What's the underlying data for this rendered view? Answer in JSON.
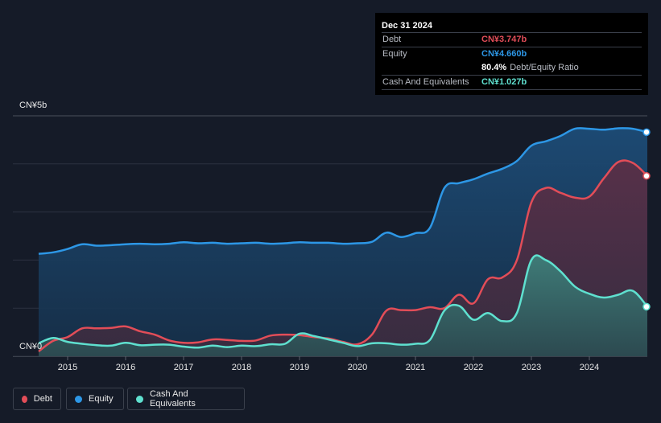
{
  "tooltip": {
    "date": "Dec 31 2024",
    "debt_label": "Debt",
    "debt_value": "CN¥3.747b",
    "equity_label": "Equity",
    "equity_value": "CN¥4.660b",
    "ratio_value": "80.4%",
    "ratio_label": "Debt/Equity Ratio",
    "cash_label": "Cash And Equivalents",
    "cash_value": "CN¥1.027b"
  },
  "legend": {
    "debt": "Debt",
    "equity": "Equity",
    "cash": "Cash And Equivalents"
  },
  "colors": {
    "debt": "#e24d58",
    "equity": "#2d97e6",
    "cash": "#5fe0cf",
    "background": "#151b28"
  },
  "chart_data": {
    "type": "area",
    "title": "",
    "y_unit": "CN¥ billions",
    "ylim": [
      0,
      5
    ],
    "y_tick_labels": [
      "CN¥0",
      "CN¥5b"
    ],
    "x_tick_labels": [
      "2015",
      "2016",
      "2017",
      "2018",
      "2019",
      "2020",
      "2021",
      "2022",
      "2023",
      "2024"
    ],
    "x_range": [
      2014.5,
      2025.0
    ],
    "grid": true,
    "legend_position": "bottom-left",
    "series": [
      {
        "name": "Equity",
        "points": [
          [
            2014.5,
            2.13
          ],
          [
            2014.75,
            2.16
          ],
          [
            2015.0,
            2.23
          ],
          [
            2015.25,
            2.33
          ],
          [
            2015.5,
            2.3
          ],
          [
            2015.75,
            2.31
          ],
          [
            2016.0,
            2.33
          ],
          [
            2016.25,
            2.34
          ],
          [
            2016.5,
            2.33
          ],
          [
            2016.75,
            2.34
          ],
          [
            2017.0,
            2.37
          ],
          [
            2017.25,
            2.35
          ],
          [
            2017.5,
            2.36
          ],
          [
            2017.75,
            2.34
          ],
          [
            2018.0,
            2.35
          ],
          [
            2018.25,
            2.36
          ],
          [
            2018.5,
            2.34
          ],
          [
            2018.75,
            2.35
          ],
          [
            2019.0,
            2.37
          ],
          [
            2019.25,
            2.36
          ],
          [
            2019.5,
            2.36
          ],
          [
            2019.75,
            2.34
          ],
          [
            2020.0,
            2.35
          ],
          [
            2020.25,
            2.38
          ],
          [
            2020.5,
            2.57
          ],
          [
            2020.75,
            2.48
          ],
          [
            2021.0,
            2.56
          ],
          [
            2021.25,
            2.67
          ],
          [
            2021.5,
            3.5
          ],
          [
            2021.75,
            3.6
          ],
          [
            2022.0,
            3.68
          ],
          [
            2022.25,
            3.8
          ],
          [
            2022.5,
            3.9
          ],
          [
            2022.75,
            4.06
          ],
          [
            2023.0,
            4.38
          ],
          [
            2023.25,
            4.47
          ],
          [
            2023.5,
            4.58
          ],
          [
            2023.75,
            4.73
          ],
          [
            2024.0,
            4.73
          ],
          [
            2024.25,
            4.71
          ],
          [
            2024.5,
            4.74
          ],
          [
            2024.75,
            4.73
          ],
          [
            2025.0,
            4.66
          ]
        ]
      },
      {
        "name": "Debt",
        "points": [
          [
            2014.5,
            0.1
          ],
          [
            2014.75,
            0.32
          ],
          [
            2015.0,
            0.4
          ],
          [
            2015.25,
            0.58
          ],
          [
            2015.5,
            0.58
          ],
          [
            2015.75,
            0.59
          ],
          [
            2016.0,
            0.62
          ],
          [
            2016.25,
            0.52
          ],
          [
            2016.5,
            0.45
          ],
          [
            2016.75,
            0.33
          ],
          [
            2017.0,
            0.28
          ],
          [
            2017.25,
            0.29
          ],
          [
            2017.5,
            0.35
          ],
          [
            2017.75,
            0.34
          ],
          [
            2018.0,
            0.32
          ],
          [
            2018.25,
            0.33
          ],
          [
            2018.5,
            0.43
          ],
          [
            2018.75,
            0.45
          ],
          [
            2019.0,
            0.44
          ],
          [
            2019.25,
            0.4
          ],
          [
            2019.5,
            0.37
          ],
          [
            2019.75,
            0.3
          ],
          [
            2020.0,
            0.25
          ],
          [
            2020.25,
            0.45
          ],
          [
            2020.5,
            0.95
          ],
          [
            2020.75,
            0.96
          ],
          [
            2021.0,
            0.96
          ],
          [
            2021.25,
            1.02
          ],
          [
            2021.5,
            1.0
          ],
          [
            2021.75,
            1.28
          ],
          [
            2022.0,
            1.1
          ],
          [
            2022.25,
            1.6
          ],
          [
            2022.5,
            1.64
          ],
          [
            2022.75,
            2.0
          ],
          [
            2023.0,
            3.2
          ],
          [
            2023.25,
            3.5
          ],
          [
            2023.5,
            3.4
          ],
          [
            2023.75,
            3.3
          ],
          [
            2024.0,
            3.32
          ],
          [
            2024.25,
            3.7
          ],
          [
            2024.5,
            4.04
          ],
          [
            2024.75,
            4.02
          ],
          [
            2025.0,
            3.75
          ]
        ]
      },
      {
        "name": "Cash And Equivalents",
        "points": [
          [
            2014.5,
            0.27
          ],
          [
            2014.75,
            0.38
          ],
          [
            2015.0,
            0.3
          ],
          [
            2015.25,
            0.26
          ],
          [
            2015.5,
            0.23
          ],
          [
            2015.75,
            0.22
          ],
          [
            2016.0,
            0.28
          ],
          [
            2016.25,
            0.23
          ],
          [
            2016.5,
            0.24
          ],
          [
            2016.75,
            0.24
          ],
          [
            2017.0,
            0.2
          ],
          [
            2017.25,
            0.18
          ],
          [
            2017.5,
            0.22
          ],
          [
            2017.75,
            0.19
          ],
          [
            2018.0,
            0.22
          ],
          [
            2018.25,
            0.21
          ],
          [
            2018.5,
            0.25
          ],
          [
            2018.75,
            0.26
          ],
          [
            2019.0,
            0.47
          ],
          [
            2019.25,
            0.42
          ],
          [
            2019.5,
            0.35
          ],
          [
            2019.75,
            0.28
          ],
          [
            2020.0,
            0.21
          ],
          [
            2020.25,
            0.27
          ],
          [
            2020.5,
            0.27
          ],
          [
            2020.75,
            0.24
          ],
          [
            2021.0,
            0.26
          ],
          [
            2021.25,
            0.34
          ],
          [
            2021.5,
            0.95
          ],
          [
            2021.75,
            1.05
          ],
          [
            2022.0,
            0.76
          ],
          [
            2022.25,
            0.9
          ],
          [
            2022.5,
            0.73
          ],
          [
            2022.75,
            0.9
          ],
          [
            2023.0,
            2.0
          ],
          [
            2023.25,
            2.0
          ],
          [
            2023.5,
            1.77
          ],
          [
            2023.75,
            1.45
          ],
          [
            2024.0,
            1.3
          ],
          [
            2024.25,
            1.22
          ],
          [
            2024.5,
            1.28
          ],
          [
            2024.75,
            1.36
          ],
          [
            2025.0,
            1.03
          ]
        ]
      }
    ]
  }
}
